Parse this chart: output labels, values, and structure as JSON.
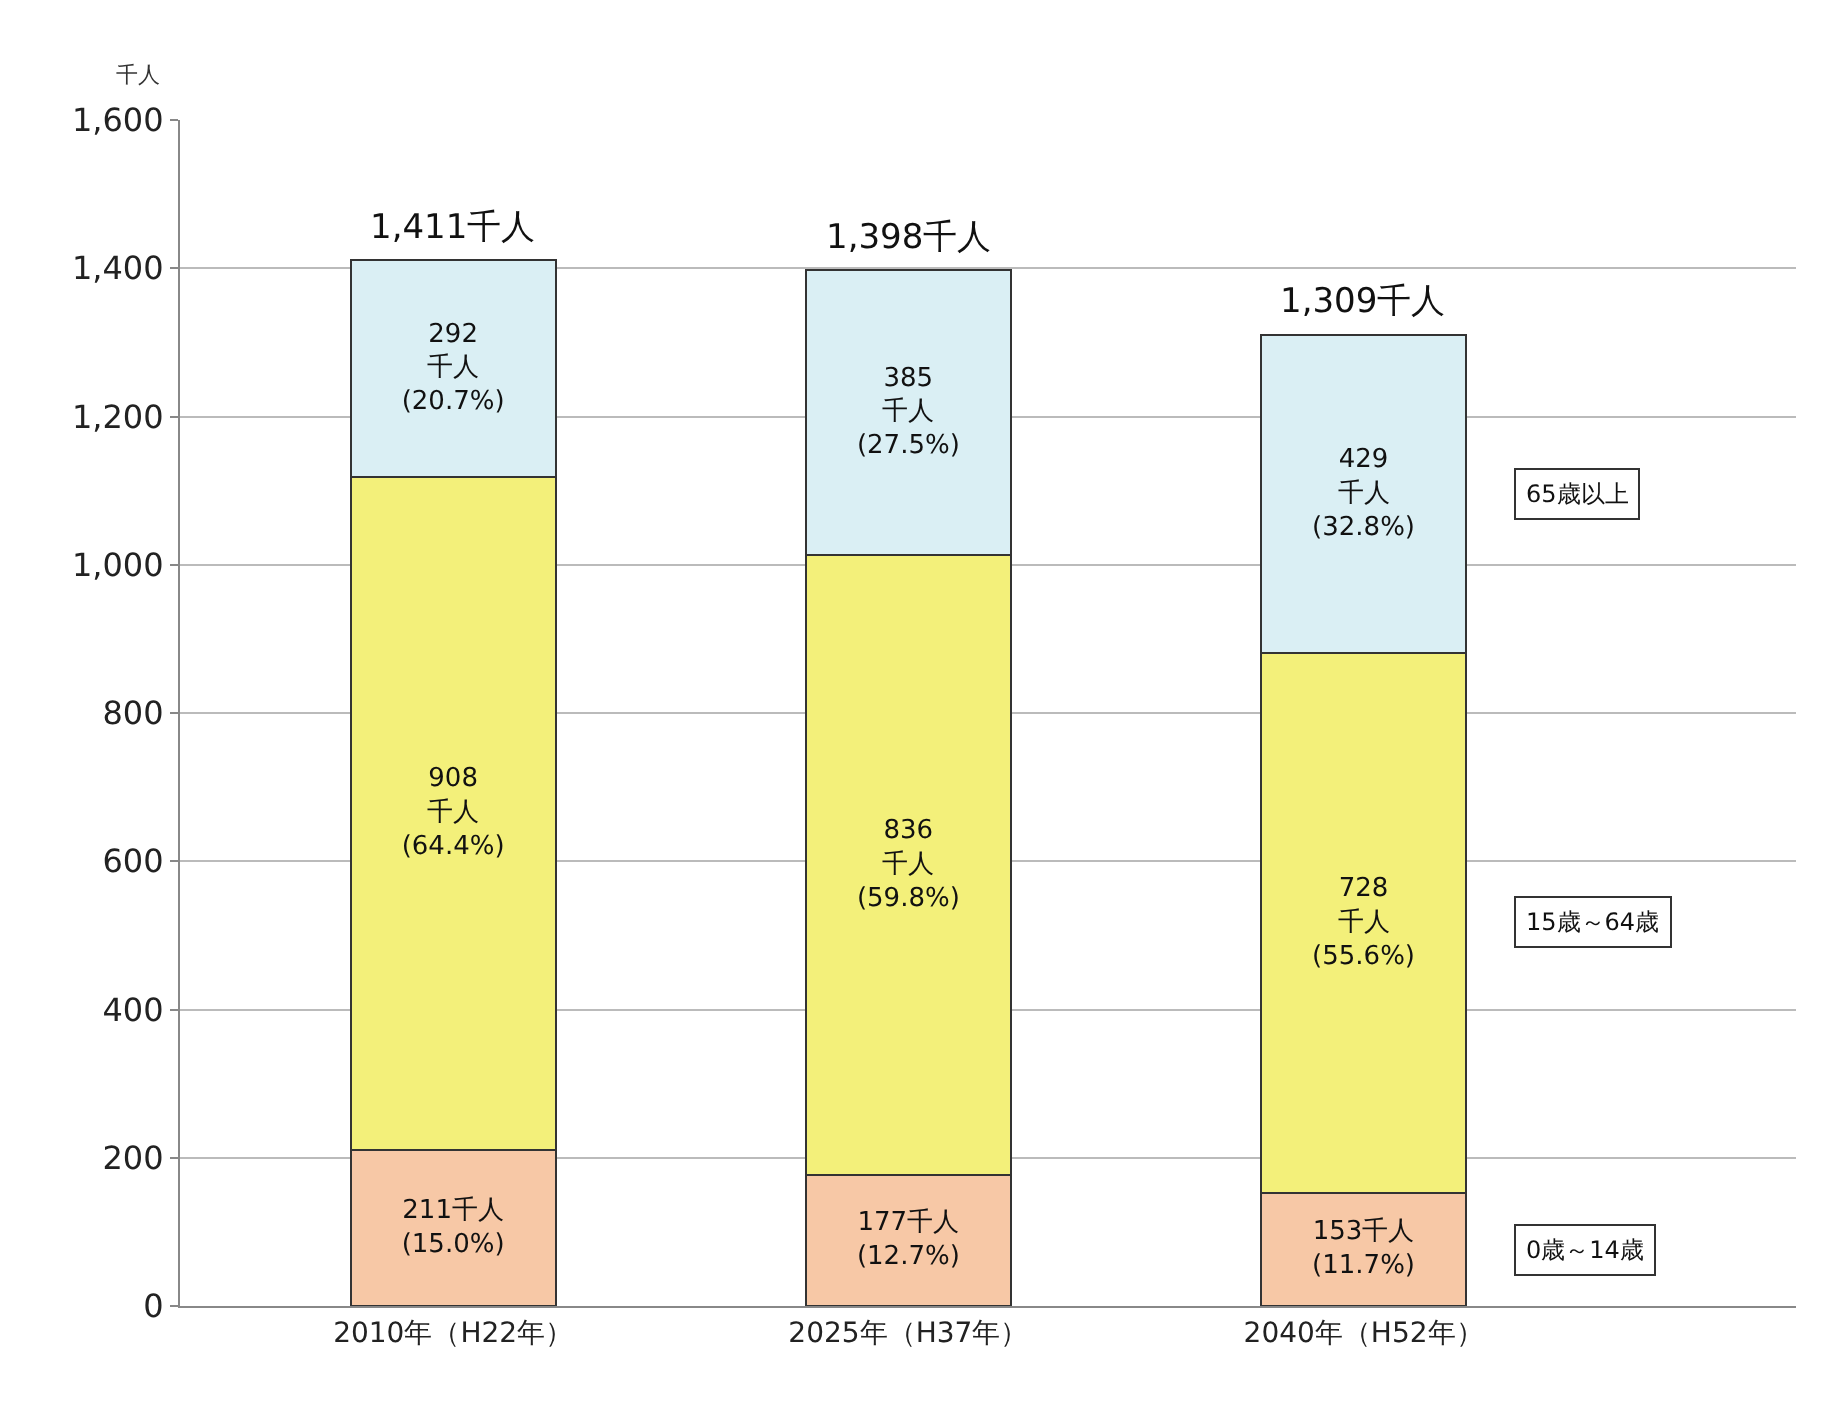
{
  "chart_data": {
    "type": "bar",
    "stacked": true,
    "ylabel": "千人",
    "categories": [
      "2010年（H22年）",
      "2025年（H37年）",
      "2040年（H52年）"
    ],
    "series": [
      {
        "name": "0歳～14歳",
        "color": "#f7c8a6",
        "values": [
          211,
          177,
          153
        ],
        "value_labels": [
          "211千人\n(15.0%)",
          "177千人\n(12.7%)",
          "153千人\n(11.7%)"
        ]
      },
      {
        "name": "15歳～64歳",
        "color": "#f3f07a",
        "values": [
          908,
          836,
          728
        ],
        "value_labels": [
          "908\n千人\n(64.4%)",
          "836\n千人\n(59.8%)",
          "728\n千人\n(55.6%)"
        ]
      },
      {
        "name": "65歳以上",
        "color": "#daeff4",
        "values": [
          292,
          385,
          429
        ],
        "value_labels": [
          "292\n千人\n(20.7%)",
          "385\n千人\n(27.5%)",
          "429\n千人\n(32.8%)"
        ]
      }
    ],
    "totals": [
      "1,411千人",
      "1,398千人",
      "1,309千人"
    ],
    "ylim": [
      0,
      1600
    ],
    "yticks": [
      0,
      200,
      400,
      600,
      800,
      {
        "value": 1000,
        "label": "1,000"
      },
      {
        "value": 1200,
        "label": "1,200"
      },
      {
        "value": 1400,
        "label": "1,400"
      },
      {
        "value": 1600,
        "label": "1,600"
      }
    ],
    "grid": "y",
    "legend": false
  }
}
